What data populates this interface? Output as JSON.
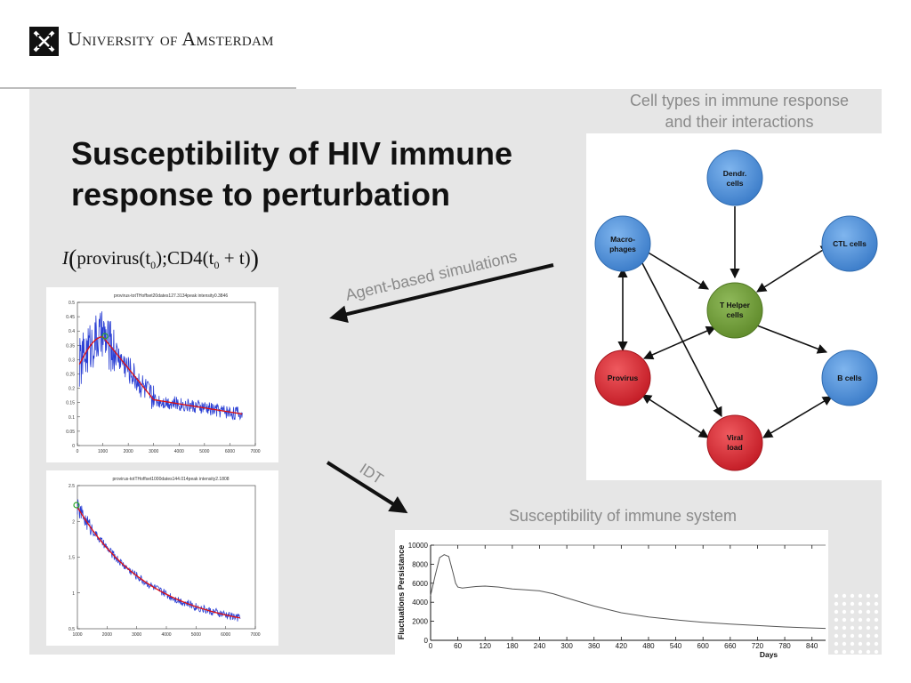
{
  "header": {
    "university_name": "University of Amsterdam"
  },
  "slide": {
    "title_line1": "Susceptibility of HIV immune",
    "title_line2": "response to perturbation",
    "formula": {
      "lhs": "I",
      "arg1": "provirus(t",
      "sub0": "0",
      "mid": ");CD4(t",
      "sub1": "0",
      "tail": " + t)"
    },
    "captions": {
      "network": "Cell types in immune response and their interactions",
      "network_line1": "Cell types in immune response",
      "network_line2": "and their interactions",
      "susceptibility": "Susceptibility of immune system",
      "agent_based": "Agent-based simulations",
      "idt": "IDT"
    }
  },
  "network": {
    "nodes": [
      {
        "id": "dendr",
        "label1": "Dendr.",
        "label2": "cells",
        "color": "#4a8fd8"
      },
      {
        "id": "macro",
        "label1": "Macro-",
        "label2": "phages",
        "color": "#4a8fd8"
      },
      {
        "id": "ctl",
        "label1": "CTL cells",
        "label2": "",
        "color": "#4a8fd8"
      },
      {
        "id": "thelper",
        "label1": "T Helper",
        "label2": "cells",
        "color": "#6f9a34"
      },
      {
        "id": "provirus",
        "label1": "Provirus",
        "label2": "",
        "color": "#d3232e"
      },
      {
        "id": "bcells",
        "label1": "B cells",
        "label2": "",
        "color": "#4a8fd8"
      },
      {
        "id": "viral",
        "label1": "Viral",
        "label2": "load",
        "color": "#d3232e"
      }
    ]
  },
  "plot1": {
    "title": "provirus-totTHoffset20dates127.3134peak intensity0.3846",
    "x_ticks": [
      "0",
      "1000",
      "2000",
      "3000",
      "4000",
      "5000",
      "6000",
      "7000"
    ],
    "y_ticks": [
      "0",
      "0.05",
      "0.1",
      "0.15",
      "0.2",
      "0.25",
      "0.3",
      "0.35",
      "0.4",
      "0.45",
      "0.5"
    ]
  },
  "plot2": {
    "title": "provirus-totTHoffset1000dates144.014peak intensity2.1808",
    "x_ticks": [
      "1000",
      "2000",
      "3000",
      "4000",
      "5000",
      "6000",
      "7000"
    ],
    "y_ticks": [
      "0.5",
      "1",
      "1.5",
      "2",
      "2.5"
    ]
  },
  "chart_data": {
    "type": "line",
    "title": "",
    "xlabel": "Days",
    "ylabel": "Fluctuations Persistance",
    "xlim": [
      0,
      870
    ],
    "ylim": [
      0,
      10000
    ],
    "x_ticks": [
      "0",
      "60",
      "120",
      "180",
      "240",
      "300",
      "360",
      "420",
      "480",
      "540",
      "600",
      "660",
      "720",
      "780",
      "840"
    ],
    "y_ticks": [
      "0",
      "2000",
      "4000",
      "6000",
      "8000",
      "10000"
    ],
    "series": [
      {
        "x": [
          0,
          10,
          20,
          30,
          40,
          50,
          55,
          60,
          70,
          80,
          100,
          120,
          150,
          180,
          210,
          240,
          270,
          300,
          360,
          420,
          480,
          540,
          600,
          660,
          720,
          780,
          840,
          870
        ],
        "values": [
          4700,
          6800,
          8700,
          9000,
          8800,
          7000,
          6000,
          5600,
          5500,
          5550,
          5650,
          5700,
          5600,
          5400,
          5300,
          5200,
          4900,
          4450,
          3600,
          2900,
          2450,
          2150,
          1900,
          1700,
          1550,
          1400,
          1300,
          1250
        ]
      }
    ]
  }
}
